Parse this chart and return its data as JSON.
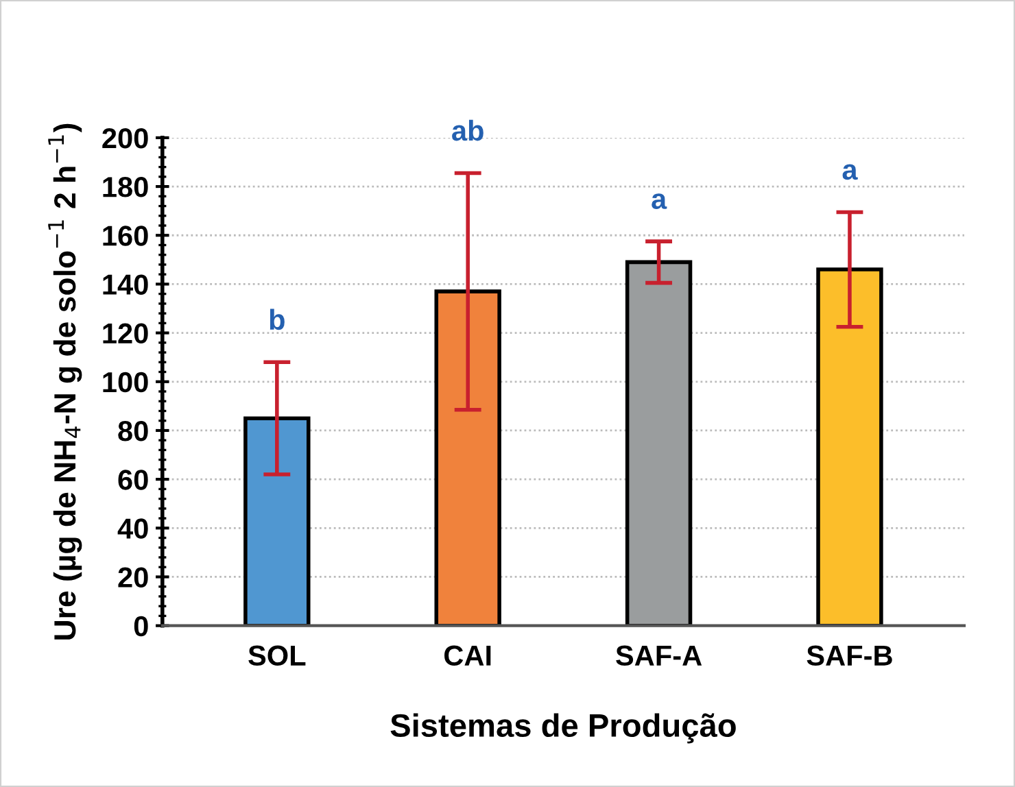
{
  "chart_data": {
    "type": "bar",
    "xlabel": "Sistemas de Produção",
    "ylabel": "Ure (µg de NH$_{4}$-N g de solo$^{−1}$ 2 h$^{−1}$)",
    "categories": [
      "SOL",
      "CAI",
      "SAF-A",
      "SAF-B"
    ],
    "values": [
      85,
      137,
      149,
      146
    ],
    "errors": [
      23,
      48.5,
      8.5,
      23.5
    ],
    "colors": [
      "#5097d1",
      "#f0823c",
      "#9a9d9e",
      "#fcbe2a"
    ],
    "ylim": [
      0,
      200
    ],
    "yticks": [
      0,
      20,
      40,
      60,
      80,
      100,
      120,
      140,
      160,
      180,
      200
    ],
    "grid": "y",
    "annotations": [
      "b",
      "ab",
      "a",
      "a"
    ]
  }
}
